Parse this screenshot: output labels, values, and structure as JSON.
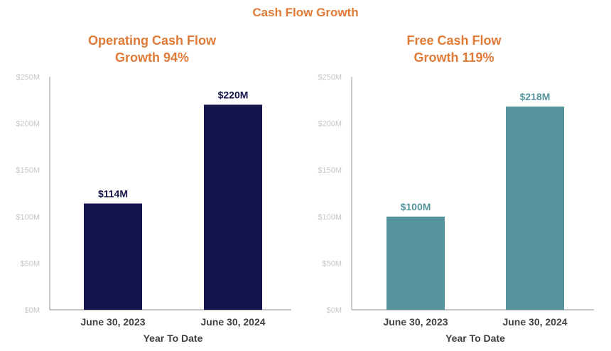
{
  "title": "Cash Flow Growth",
  "colors": {
    "title": "#e07a36",
    "operating": "#15154d",
    "free": "#55949c",
    "axis": "#a0a3a8"
  },
  "chart_data": [
    {
      "type": "bar",
      "title": [
        "Operating Cash Flow",
        "Growth 94%"
      ],
      "xlabel": "Year To Date",
      "ylabel": "",
      "categories": [
        "June 30, 2023",
        "June 30, 2024"
      ],
      "values": [
        114,
        220
      ],
      "data_labels": [
        "$114M",
        "$220M"
      ],
      "ylim": [
        0,
        250
      ],
      "yticks": [
        0,
        50,
        100,
        150,
        200,
        250
      ],
      "ytick_labels": [
        "$0M",
        "$50M",
        "$100M",
        "$150M",
        "$200M",
        "$250M"
      ],
      "grid": false,
      "color": "#15154d"
    },
    {
      "type": "bar",
      "title": [
        "Free Cash Flow",
        "Growth 119%"
      ],
      "xlabel": "Year To Date",
      "ylabel": "",
      "categories": [
        "June 30, 2023",
        "June 30, 2024"
      ],
      "values": [
        100,
        218
      ],
      "data_labels": [
        "$100M",
        "$218M"
      ],
      "ylim": [
        0,
        250
      ],
      "yticks": [
        0,
        50,
        100,
        150,
        200,
        250
      ],
      "ytick_labels": [
        "$0M",
        "$50M",
        "$100M",
        "$150M",
        "$200M",
        "$250M"
      ],
      "grid": false,
      "color": "#55949c"
    }
  ]
}
